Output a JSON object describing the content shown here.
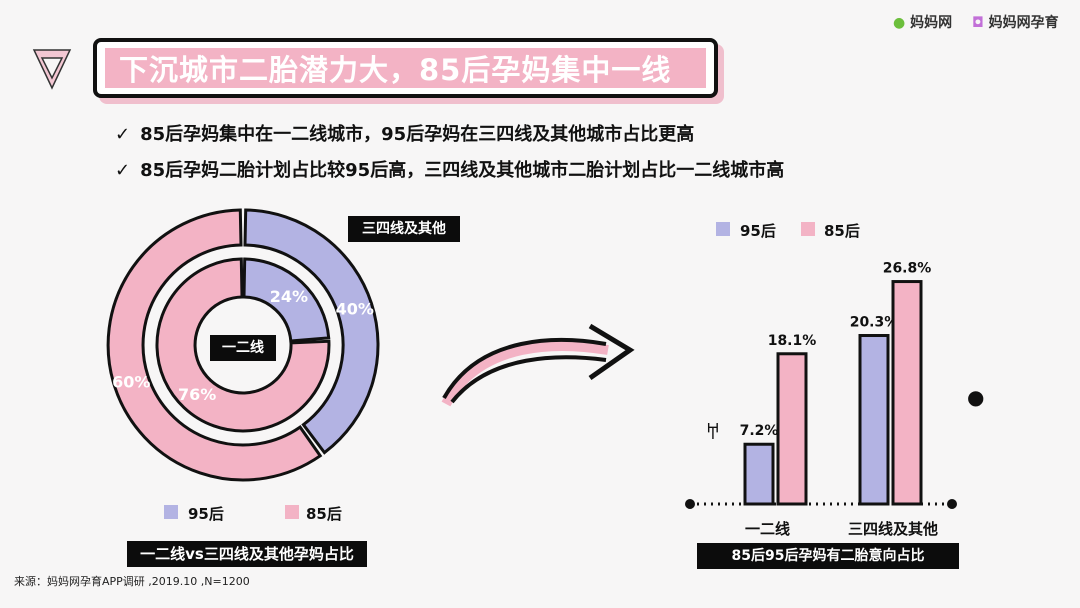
{
  "header": {
    "logo1": "妈妈网",
    "logo2": "妈妈网孕育",
    "title": "下沉城市二胎潜力大，85后孕妈集中一线"
  },
  "bullets": [
    "85后孕妈集中在一二线城市，95后孕妈在三四线及其他城市占比更高",
    "85后孕妈二胎计划占比较95后高，三四线及其他城市二胎计划占比一二线城市高"
  ],
  "colors": {
    "p95": "#b3b3e3",
    "p85": "#f3b3c5",
    "title_bg": "#f3b3c5"
  },
  "chart_data": [
    {
      "type": "pie",
      "variant": "nested-donut",
      "title": "一二线vs三四线及其他孕妈占比",
      "rings": [
        {
          "label": "一二线",
          "position": "inner",
          "slices": [
            {
              "name": "95后",
              "value": 24,
              "label": "24%"
            },
            {
              "name": "85后",
              "value": 76,
              "label": "76%"
            }
          ]
        },
        {
          "label": "三四线及其他",
          "position": "outer",
          "slices": [
            {
              "name": "95后",
              "value": 40,
              "label": "40%"
            },
            {
              "name": "85后",
              "value": 60,
              "label": "60%"
            }
          ]
        }
      ],
      "legend": [
        "95后",
        "85后"
      ],
      "legend_position": "bottom"
    },
    {
      "type": "bar",
      "title": "85后95后孕妈有二胎意向占比",
      "categories": [
        "一二线",
        "三四线及其他"
      ],
      "series": [
        {
          "name": "95后",
          "values": [
            7.2,
            20.3
          ],
          "labels": [
            "7.2%",
            "20.3%"
          ]
        },
        {
          "name": "85后",
          "values": [
            18.1,
            26.8
          ],
          "labels": [
            "18.1%",
            "26.8%"
          ]
        }
      ],
      "legend_position": "top",
      "grid": false
    }
  ],
  "footer": "来源：妈妈网孕育APP调研 ,2019.10 ,N=1200"
}
